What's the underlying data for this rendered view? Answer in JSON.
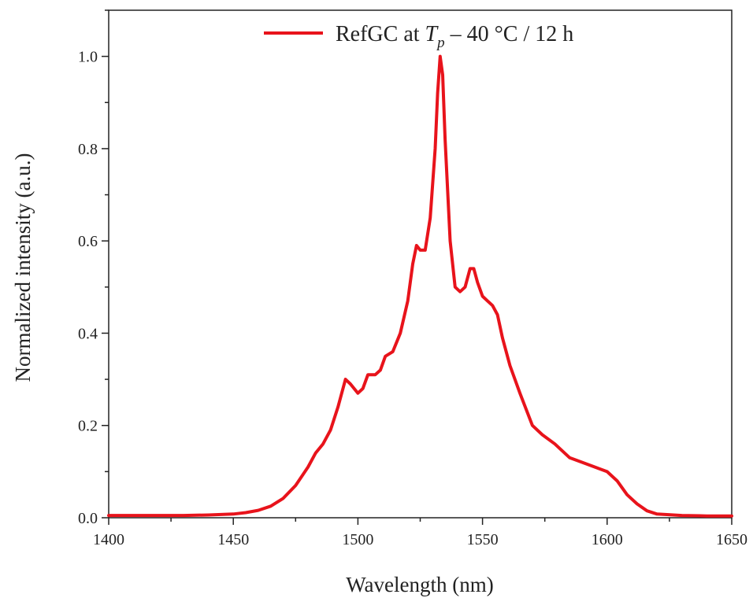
{
  "chart_data": {
    "type": "line",
    "xlabel": "Wavelength (nm)",
    "ylabel": "Normalized intensity (a.u.)",
    "xlim": [
      1400,
      1650
    ],
    "ylim": [
      0.0,
      1.1
    ],
    "x_ticks": [
      "1400",
      "1450",
      "1500",
      "1550",
      "1600",
      "1650"
    ],
    "y_ticks": [
      "0.0",
      "0.2",
      "0.4",
      "0.6",
      "0.8",
      "1.0"
    ],
    "grid": false,
    "legend_position": "top-center",
    "legend": {
      "prefix": "RefGC at ",
      "var_main": "T",
      "var_sub": "p",
      "suffix": " – 40 °C / 12 h"
    },
    "series": [
      {
        "name": "RefGC at Tp – 40 °C / 12 h",
        "color": "#e8131b",
        "points": [
          [
            1400,
            0.005
          ],
          [
            1410,
            0.005
          ],
          [
            1420,
            0.005
          ],
          [
            1430,
            0.005
          ],
          [
            1440,
            0.006
          ],
          [
            1450,
            0.008
          ],
          [
            1455,
            0.011
          ],
          [
            1460,
            0.016
          ],
          [
            1465,
            0.025
          ],
          [
            1470,
            0.042
          ],
          [
            1475,
            0.07
          ],
          [
            1480,
            0.11
          ],
          [
            1483,
            0.14
          ],
          [
            1486,
            0.16
          ],
          [
            1489,
            0.19
          ],
          [
            1492,
            0.24
          ],
          [
            1495,
            0.3
          ],
          [
            1497,
            0.29
          ],
          [
            1500,
            0.27
          ],
          [
            1502,
            0.28
          ],
          [
            1504,
            0.31
          ],
          [
            1507,
            0.31
          ],
          [
            1509,
            0.32
          ],
          [
            1511,
            0.35
          ],
          [
            1514,
            0.36
          ],
          [
            1517,
            0.4
          ],
          [
            1520,
            0.47
          ],
          [
            1522,
            0.55
          ],
          [
            1523.5,
            0.59
          ],
          [
            1525,
            0.58
          ],
          [
            1527,
            0.58
          ],
          [
            1529,
            0.65
          ],
          [
            1531,
            0.8
          ],
          [
            1532,
            0.92
          ],
          [
            1533,
            1.0
          ],
          [
            1534,
            0.96
          ],
          [
            1535,
            0.82
          ],
          [
            1537,
            0.6
          ],
          [
            1539,
            0.5
          ],
          [
            1541,
            0.49
          ],
          [
            1543,
            0.5
          ],
          [
            1545,
            0.54
          ],
          [
            1546.5,
            0.54
          ],
          [
            1548,
            0.51
          ],
          [
            1550,
            0.48
          ],
          [
            1552,
            0.47
          ],
          [
            1554,
            0.46
          ],
          [
            1556,
            0.44
          ],
          [
            1558,
            0.39
          ],
          [
            1561,
            0.33
          ],
          [
            1565,
            0.27
          ],
          [
            1570,
            0.2
          ],
          [
            1574,
            0.18
          ],
          [
            1579,
            0.16
          ],
          [
            1585,
            0.13
          ],
          [
            1590,
            0.12
          ],
          [
            1595,
            0.11
          ],
          [
            1600,
            0.1
          ],
          [
            1604,
            0.08
          ],
          [
            1608,
            0.05
          ],
          [
            1612,
            0.03
          ],
          [
            1616,
            0.015
          ],
          [
            1620,
            0.008
          ],
          [
            1630,
            0.005
          ],
          [
            1640,
            0.004
          ],
          [
            1650,
            0.004
          ]
        ]
      }
    ]
  }
}
